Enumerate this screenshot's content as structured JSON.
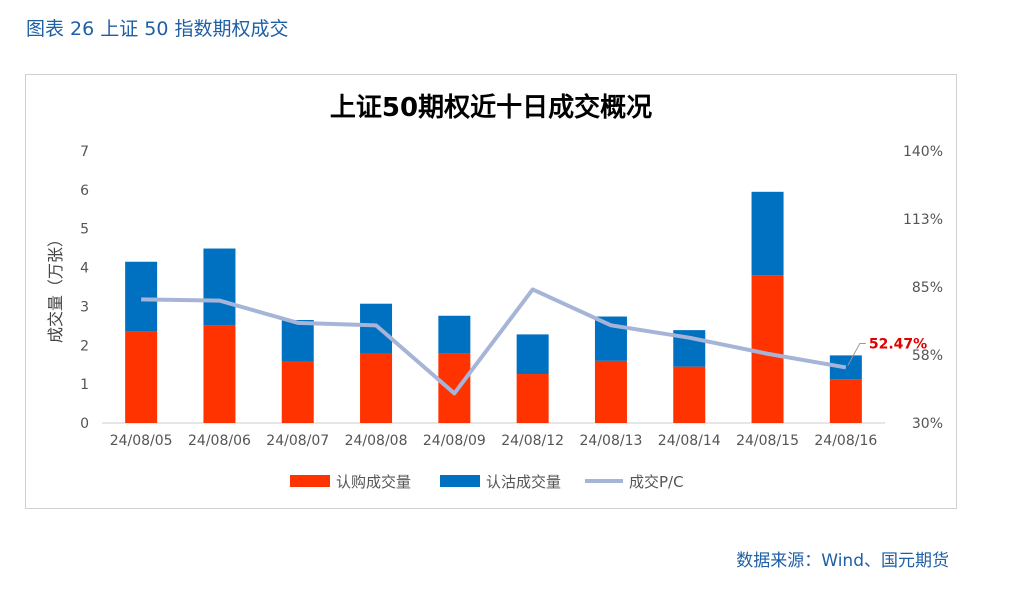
{
  "figure_caption": "图表 26 上证 50 指数期权成交",
  "source_note": "数据来源：Wind、国元期货",
  "colors": {
    "call": "#ff3300",
    "put": "#0070c0",
    "pc_line": "#a6b4d8",
    "annotation": "#e00000"
  },
  "chart_data": {
    "type": "bar",
    "title": "上证50期权近十日成交概况",
    "ylabel": "成交量（万张）",
    "categories": [
      "24/08/05",
      "24/08/06",
      "24/08/07",
      "24/08/08",
      "24/08/09",
      "24/08/12",
      "24/08/13",
      "24/08/14",
      "24/08/15",
      "24/08/16"
    ],
    "stacked": true,
    "series": [
      {
        "name": "认购成交量",
        "type": "bar",
        "axis": "left",
        "values": [
          2.35,
          2.52,
          1.58,
          1.79,
          1.8,
          1.26,
          1.6,
          1.45,
          3.8,
          1.13
        ]
      },
      {
        "name": "认沽成交量",
        "type": "bar",
        "axis": "left",
        "values": [
          1.8,
          1.97,
          1.07,
          1.28,
          0.96,
          1.02,
          1.14,
          0.94,
          2.15,
          0.61
        ]
      },
      {
        "name": "成交P/C",
        "type": "line",
        "axis": "right",
        "values": [
          0.8,
          0.795,
          0.705,
          0.695,
          0.42,
          0.84,
          0.695,
          0.645,
          0.58,
          0.5247
        ]
      }
    ],
    "ylim_left": [
      0,
      7
    ],
    "yticks_left": [
      "0",
      "1",
      "2",
      "3",
      "4",
      "5",
      "6",
      "7"
    ],
    "ylim_right": [
      0.3,
      1.4
    ],
    "yticks_right": [
      "30%",
      "58%",
      "85%",
      "113%",
      "140%"
    ],
    "annotation": {
      "label": "52.47%",
      "category": "24/08/16",
      "series": "成交P/C"
    },
    "legend_position": "bottom",
    "grid": false
  }
}
